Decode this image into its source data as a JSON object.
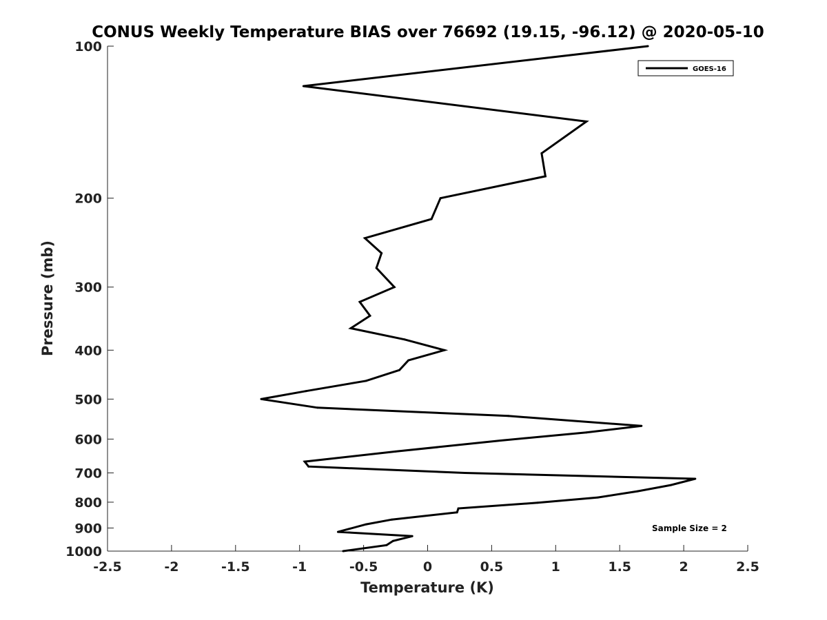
{
  "chart_data": {
    "type": "line",
    "title": "CONUS Weekly Temperature BIAS over 76692 (19.15, -96.12) @ 2020-05-10",
    "xlabel": "Temperature (K)",
    "ylabel": "Pressure (mb)",
    "xlim": [
      -2.5,
      2.5
    ],
    "ylim": [
      100,
      1000
    ],
    "yscale": "log",
    "y_reversed": true,
    "grid": false,
    "legend_position": "top-right",
    "xticks": [
      "-2.5",
      "-2",
      "-1.5",
      "-1",
      "-0.5",
      "0",
      "0.5",
      "1",
      "1.5",
      "2",
      "2.5"
    ],
    "yticks": [
      "100",
      "200",
      "300",
      "400",
      "500",
      "600",
      "700",
      "800",
      "900",
      "1000"
    ],
    "series": [
      {
        "name": "GOES-16",
        "color": "#000000",
        "points": [
          {
            "x": 1.72,
            "y": 100
          },
          {
            "x": -0.97,
            "y": 120
          },
          {
            "x": 1.24,
            "y": 141
          },
          {
            "x": 0.89,
            "y": 163
          },
          {
            "x": 0.92,
            "y": 181
          },
          {
            "x": 0.1,
            "y": 200
          },
          {
            "x": 0.03,
            "y": 220
          },
          {
            "x": -0.49,
            "y": 240
          },
          {
            "x": -0.36,
            "y": 257
          },
          {
            "x": -0.4,
            "y": 275
          },
          {
            "x": -0.26,
            "y": 300
          },
          {
            "x": -0.53,
            "y": 321
          },
          {
            "x": -0.45,
            "y": 342
          },
          {
            "x": -0.6,
            "y": 362
          },
          {
            "x": -0.18,
            "y": 381
          },
          {
            "x": 0.13,
            "y": 400
          },
          {
            "x": -0.15,
            "y": 419
          },
          {
            "x": -0.22,
            "y": 438
          },
          {
            "x": -0.48,
            "y": 460
          },
          {
            "x": -0.95,
            "y": 482
          },
          {
            "x": -1.3,
            "y": 500
          },
          {
            "x": -0.86,
            "y": 520
          },
          {
            "x": 0.63,
            "y": 540
          },
          {
            "x": 1.67,
            "y": 565
          },
          {
            "x": 1.24,
            "y": 582
          },
          {
            "x": 0.57,
            "y": 604
          },
          {
            "x": -0.25,
            "y": 635
          },
          {
            "x": -0.96,
            "y": 665
          },
          {
            "x": -0.93,
            "y": 680
          },
          {
            "x": 0.29,
            "y": 700
          },
          {
            "x": 2.09,
            "y": 719
          },
          {
            "x": 1.9,
            "y": 740
          },
          {
            "x": 1.64,
            "y": 761
          },
          {
            "x": 1.33,
            "y": 783
          },
          {
            "x": 0.86,
            "y": 802
          },
          {
            "x": 0.24,
            "y": 823
          },
          {
            "x": 0.23,
            "y": 838
          },
          {
            "x": -0.28,
            "y": 866
          },
          {
            "x": -0.48,
            "y": 885
          },
          {
            "x": -0.7,
            "y": 916
          },
          {
            "x": -0.12,
            "y": 934
          },
          {
            "x": -0.27,
            "y": 955
          },
          {
            "x": -0.32,
            "y": 973
          },
          {
            "x": -0.66,
            "y": 1000
          }
        ]
      }
    ],
    "annotation": "Sample Size = 2"
  }
}
